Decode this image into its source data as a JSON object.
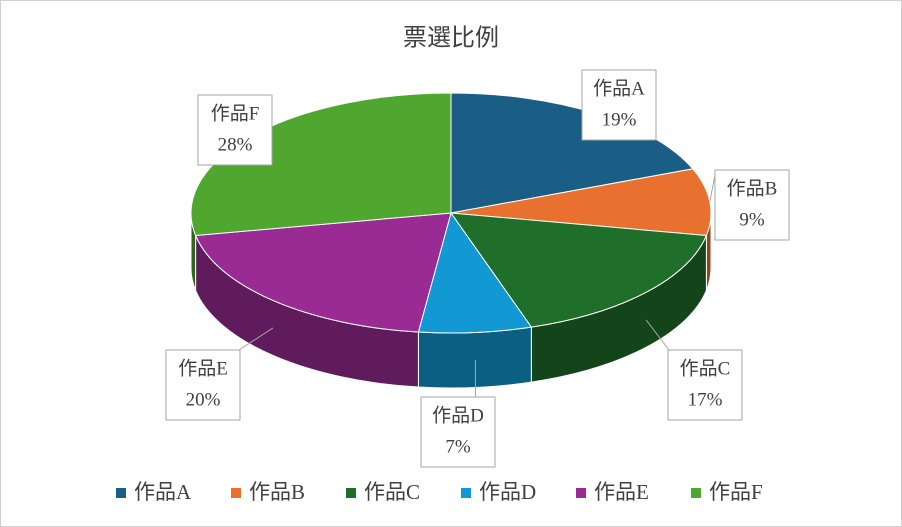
{
  "chart_data": {
    "type": "pie",
    "title": "票選比例",
    "categories": [
      "作品A",
      "作品B",
      "作品C",
      "作品D",
      "作品E",
      "作品F"
    ],
    "values": [
      19,
      9,
      17,
      7,
      20,
      28
    ],
    "value_labels": [
      "19%",
      "9%",
      "17%",
      "7%",
      "20%",
      "28%"
    ],
    "colors": [
      "#1a5e85",
      "#e8712f",
      "#1f6e2a",
      "#1299d3",
      "#9a2b95",
      "#4fa72f"
    ],
    "legend": "bottom"
  }
}
